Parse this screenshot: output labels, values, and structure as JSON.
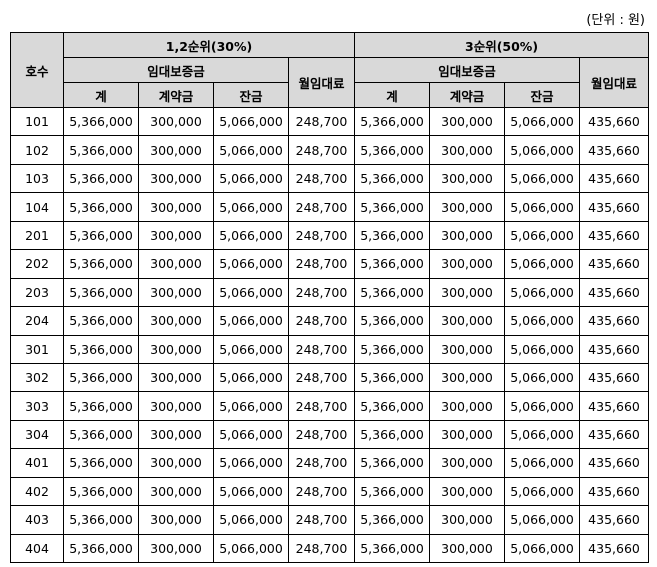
{
  "unit_label": "(단위 : 원)",
  "headers": {
    "unit_no": "호수",
    "group1": "1,2순위(30%)",
    "group2": "3순위(50%)",
    "deposit": "임대보증금",
    "total": "계",
    "contract": "계약금",
    "balance": "잔금",
    "monthly": "월임대료"
  },
  "rows": [
    {
      "unit": "101",
      "g1": [
        "5,366,000",
        "300,000",
        "5,066,000",
        "248,700"
      ],
      "g2": [
        "5,366,000",
        "300,000",
        "5,066,000",
        "435,660"
      ]
    },
    {
      "unit": "102",
      "g1": [
        "5,366,000",
        "300,000",
        "5,066,000",
        "248,700"
      ],
      "g2": [
        "5,366,000",
        "300,000",
        "5,066,000",
        "435,660"
      ]
    },
    {
      "unit": "103",
      "g1": [
        "5,366,000",
        "300,000",
        "5,066,000",
        "248,700"
      ],
      "g2": [
        "5,366,000",
        "300,000",
        "5,066,000",
        "435,660"
      ]
    },
    {
      "unit": "104",
      "g1": [
        "5,366,000",
        "300,000",
        "5,066,000",
        "248,700"
      ],
      "g2": [
        "5,366,000",
        "300,000",
        "5,066,000",
        "435,660"
      ]
    },
    {
      "unit": "201",
      "g1": [
        "5,366,000",
        "300,000",
        "5,066,000",
        "248,700"
      ],
      "g2": [
        "5,366,000",
        "300,000",
        "5,066,000",
        "435,660"
      ]
    },
    {
      "unit": "202",
      "g1": [
        "5,366,000",
        "300,000",
        "5,066,000",
        "248,700"
      ],
      "g2": [
        "5,366,000",
        "300,000",
        "5,066,000",
        "435,660"
      ]
    },
    {
      "unit": "203",
      "g1": [
        "5,366,000",
        "300,000",
        "5,066,000",
        "248,700"
      ],
      "g2": [
        "5,366,000",
        "300,000",
        "5,066,000",
        "435,660"
      ]
    },
    {
      "unit": "204",
      "g1": [
        "5,366,000",
        "300,000",
        "5,066,000",
        "248,700"
      ],
      "g2": [
        "5,366,000",
        "300,000",
        "5,066,000",
        "435,660"
      ]
    },
    {
      "unit": "301",
      "g1": [
        "5,366,000",
        "300,000",
        "5,066,000",
        "248,700"
      ],
      "g2": [
        "5,366,000",
        "300,000",
        "5,066,000",
        "435,660"
      ]
    },
    {
      "unit": "302",
      "g1": [
        "5,366,000",
        "300,000",
        "5,066,000",
        "248,700"
      ],
      "g2": [
        "5,366,000",
        "300,000",
        "5,066,000",
        "435,660"
      ]
    },
    {
      "unit": "303",
      "g1": [
        "5,366,000",
        "300,000",
        "5,066,000",
        "248,700"
      ],
      "g2": [
        "5,366,000",
        "300,000",
        "5,066,000",
        "435,660"
      ]
    },
    {
      "unit": "304",
      "g1": [
        "5,366,000",
        "300,000",
        "5,066,000",
        "248,700"
      ],
      "g2": [
        "5,366,000",
        "300,000",
        "5,066,000",
        "435,660"
      ]
    },
    {
      "unit": "401",
      "g1": [
        "5,366,000",
        "300,000",
        "5,066,000",
        "248,700"
      ],
      "g2": [
        "5,366,000",
        "300,000",
        "5,066,000",
        "435,660"
      ]
    },
    {
      "unit": "402",
      "g1": [
        "5,366,000",
        "300,000",
        "5,066,000",
        "248,700"
      ],
      "g2": [
        "5,366,000",
        "300,000",
        "5,066,000",
        "435,660"
      ]
    },
    {
      "unit": "403",
      "g1": [
        "5,366,000",
        "300,000",
        "5,066,000",
        "248,700"
      ],
      "g2": [
        "5,366,000",
        "300,000",
        "5,066,000",
        "435,660"
      ]
    },
    {
      "unit": "404",
      "g1": [
        "5,366,000",
        "300,000",
        "5,066,000",
        "248,700"
      ],
      "g2": [
        "5,366,000",
        "300,000",
        "5,066,000",
        "435,660"
      ]
    }
  ]
}
